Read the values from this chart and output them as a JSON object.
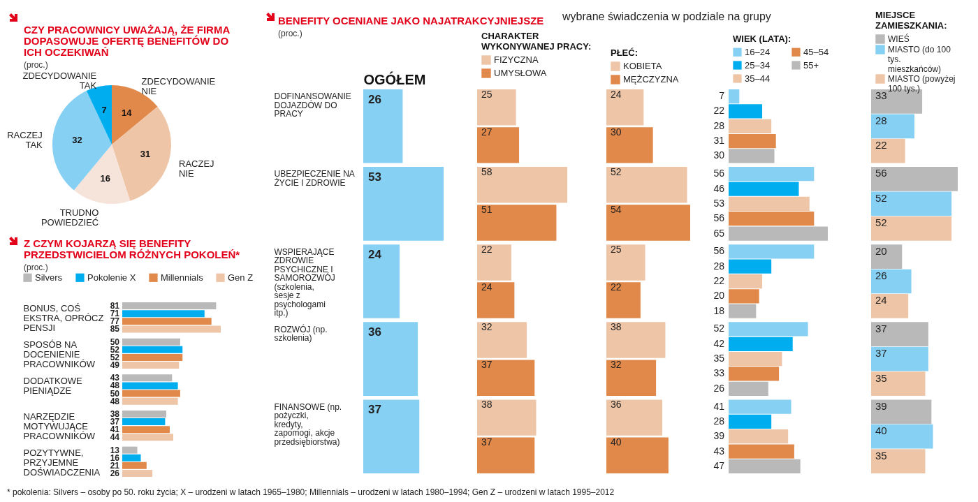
{
  "chart_data": [
    {
      "type": "pie",
      "title": "CZY PRACOWNICY UWAŻAJĄ, ŻE FIRMA DOPASOWUJE OFERTĘ BENEFITÓW DO ICH OCZEKIWAŃ",
      "subtitle": "(proc.)",
      "categories": [
        "ZDECYDOWANIE NIE",
        "RACZEJ NIE",
        "TRUDNO POWIEDZIEĆ",
        "RACZEJ TAK",
        "ZDECYDOWANIE TAK"
      ],
      "values": [
        14,
        31,
        16,
        32,
        7
      ],
      "colors": [
        "#e0894a",
        "#eec5a6",
        "#f6e3da",
        "#86d0f4",
        "#00aeef"
      ],
      "data_labels": true
    },
    {
      "type": "bar",
      "orientation": "horizontal",
      "title": "Z CZYM KOJARZĄ SIĘ BENEFITY PRZEDSTWICIELOM RÓŻNYCH POKOLEŃ*",
      "subtitle": "(proc.)",
      "categories": [
        "BONUS, COŚ EKSTRA, OPRÓCZ PENSJI",
        "SPOSÓB NA DOCENIENIE PRACOWNIKÓW",
        "DODATKOWE PIENIĄDZE",
        "NARZĘDZIE MOTYWUJĄCE PRACOWNIKÓW",
        "POZYTYWNE, PRZYJEMNE DOŚWIADCZENIA"
      ],
      "series": [
        {
          "name": "Silvers",
          "color": "#b9b9b9",
          "values": [
            81,
            50,
            43,
            38,
            13
          ]
        },
        {
          "name": "Pokolenie X",
          "color": "#00aeef",
          "values": [
            71,
            52,
            48,
            37,
            16
          ]
        },
        {
          "name": "Millennials",
          "color": "#e0894a",
          "values": [
            77,
            52,
            50,
            41,
            21
          ]
        },
        {
          "name": "Gen Z",
          "color": "#eec5a6",
          "values": [
            85,
            49,
            48,
            44,
            26
          ]
        }
      ],
      "legend": "top",
      "tick_labels": "y",
      "data_labels": true,
      "annotations": [
        "* pokolenia: Silvers – osoby po 50. roku życia; X – urodzeni w latach 1965–1980; Millennials – urodzeni w latach 1980–1994; Gen Z – urodzeni w latach 1995–2012"
      ]
    },
    {
      "type": "bar",
      "orientation": "horizontal",
      "title": "BENEFITY OCENIANE JAKO NAJATRAKCYJNIEJSZE",
      "subtitle": "(proc.)",
      "xlabel": "OGÓŁEM",
      "categories": [
        "DOFINANSOWANIE DOJAZDÓW DO PRACY",
        "UBEZPIECZENIE NA ŻYCIE I ZDROWIE",
        "WSPIERAJĄCE ZDROWIE PSYCHICZNE I SAMOROZWÓJ (szkolenia, sesje z psychologami itp.)",
        "ROZWÓJ (np. szkolenia)",
        "FINANSOWE (np. pożyczki, kredyty, zapomogi, akcje przedsiębiorstwa)"
      ],
      "values": [
        26,
        53,
        24,
        36,
        37
      ],
      "color": "#86d0f4",
      "tick_labels": "y",
      "data_labels": true,
      "annotations": [
        "wybrane świadczenia w podziale na grupy"
      ]
    },
    {
      "type": "bar",
      "orientation": "horizontal",
      "legend_title": "CHARAKTER WYKONYWANEJ PRACY:",
      "categories": [
        null,
        null,
        null,
        null,
        null
      ],
      "series": [
        {
          "name": "FIZYCZNA",
          "color": "#eec5a6",
          "values": [
            25,
            58,
            22,
            32,
            38
          ]
        },
        {
          "name": "UMYSŁOWA",
          "color": "#e0894a",
          "values": [
            27,
            51,
            24,
            37,
            37
          ]
        }
      ],
      "legend": "top",
      "data_labels": true
    },
    {
      "type": "bar",
      "orientation": "horizontal",
      "legend_title": "PŁEĆ:",
      "categories": [
        null,
        null,
        null,
        null,
        null
      ],
      "series": [
        {
          "name": "KOBIETA",
          "color": "#eec5a6",
          "values": [
            24,
            52,
            25,
            38,
            36
          ]
        },
        {
          "name": "MĘŻCZYZNA",
          "color": "#e0894a",
          "values": [
            30,
            54,
            22,
            32,
            40
          ]
        }
      ],
      "legend": "top",
      "data_labels": true
    },
    {
      "type": "bar",
      "orientation": "horizontal",
      "legend_title": "WIEK (LATA):",
      "categories": [
        null,
        null,
        null,
        null,
        null
      ],
      "series": [
        {
          "name": "16–24",
          "color": "#86d0f4",
          "values": [
            7,
            56,
            56,
            52,
            41
          ]
        },
        {
          "name": "25–34",
          "color": "#00aeef",
          "values": [
            22,
            46,
            28,
            42,
            28
          ]
        },
        {
          "name": "35–44",
          "color": "#eec5a6",
          "values": [
            28,
            53,
            22,
            35,
            39
          ]
        },
        {
          "name": "45–54",
          "color": "#e0894a",
          "values": [
            31,
            56,
            20,
            33,
            43
          ]
        },
        {
          "name": "55+",
          "color": "#b9b9b9",
          "values": [
            30,
            65,
            18,
            26,
            47
          ]
        }
      ],
      "legend": "top",
      "data_labels": true
    },
    {
      "type": "bar",
      "orientation": "horizontal",
      "legend_title": "MIEJSCE ZAMIESZKANIA:",
      "categories": [
        null,
        null,
        null,
        null,
        null
      ],
      "series": [
        {
          "name": "WIEŚ",
          "color": "#b9b9b9",
          "values": [
            33,
            56,
            20,
            37,
            39
          ]
        },
        {
          "name": "MIASTO (do 100 tys. mieszkańców)",
          "color": "#86d0f4",
          "values": [
            28,
            52,
            26,
            37,
            40
          ]
        },
        {
          "name": "MIASTO (powyżej 100 tys.)",
          "color": "#eec5a6",
          "values": [
            22,
            52,
            24,
            35,
            35
          ]
        }
      ],
      "legend": "top",
      "data_labels": true
    }
  ]
}
